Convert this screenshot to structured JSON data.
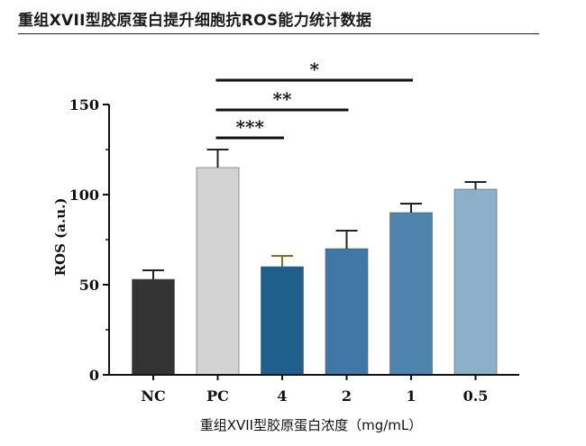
{
  "chart_data": {
    "type": "bar",
    "title": "重组XVII型胶原蛋白提升细胞抗ROS能力统计数据",
    "xlabel": "重组XVII型胶原蛋白浓度（mg/mL）",
    "ylabel": "ROS (a.u.)",
    "ylim": [
      0,
      150
    ],
    "yticks": [
      "0",
      "50",
      "100",
      "150"
    ],
    "categories": [
      "NC",
      "PC",
      "4",
      "2",
      "1",
      "0.5"
    ],
    "values": [
      53,
      115,
      60,
      70,
      90,
      103
    ],
    "errors": [
      5,
      10,
      6,
      10,
      5,
      4
    ],
    "colors": [
      "#333333",
      "#d3d3d3",
      "#1e5f8c",
      "#3f78a6",
      "#4f84af",
      "#8cb0ca"
    ],
    "error_colors": [
      "#222222",
      "#222222",
      "#8a6a2a",
      "#222222",
      "#222222",
      "#222222"
    ],
    "significance": [
      {
        "from": "PC",
        "to": "1",
        "label": "*"
      },
      {
        "from": "PC",
        "to": "2",
        "label": "**"
      },
      {
        "from": "PC",
        "to": "4",
        "label": "***"
      }
    ],
    "grid": false
  }
}
